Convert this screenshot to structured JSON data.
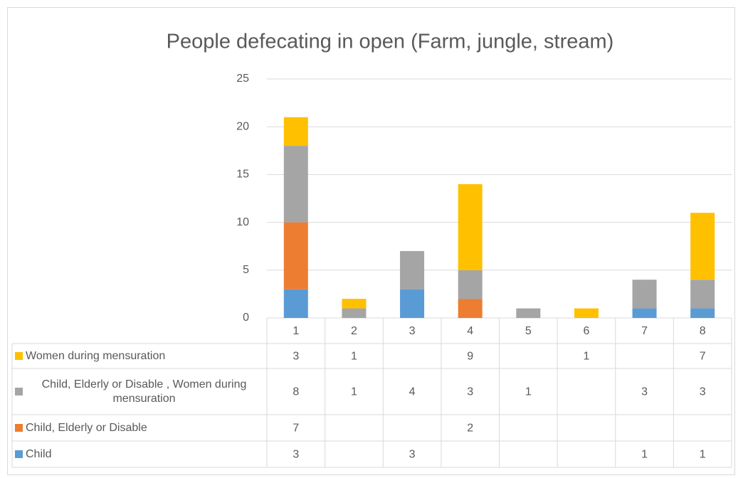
{
  "chart_data": {
    "type": "bar",
    "stacked": true,
    "title": "People defecating in open (Farm, jungle, stream)",
    "categories": [
      "1",
      "2",
      "3",
      "4",
      "5",
      "6",
      "7",
      "8"
    ],
    "series": [
      {
        "name": "Child",
        "color": "#5b9bd5",
        "values": [
          3,
          null,
          3,
          null,
          null,
          null,
          1,
          1
        ]
      },
      {
        "name": "Child, Elderly or Disable",
        "color": "#ed7d31",
        "values": [
          7,
          null,
          null,
          2,
          null,
          null,
          null,
          null
        ]
      },
      {
        "name": "Child, Elderly or Disable , Women during mensuration",
        "color": "#a5a5a5",
        "values": [
          8,
          1,
          4,
          3,
          1,
          null,
          3,
          3
        ]
      },
      {
        "name": "Women during mensuration",
        "color": "#ffc000",
        "values": [
          3,
          1,
          null,
          9,
          null,
          1,
          null,
          7
        ]
      }
    ],
    "ylim": [
      0,
      25
    ],
    "yticks": [
      0,
      5,
      10,
      15,
      20,
      25
    ],
    "grid": true,
    "data_table": true
  }
}
